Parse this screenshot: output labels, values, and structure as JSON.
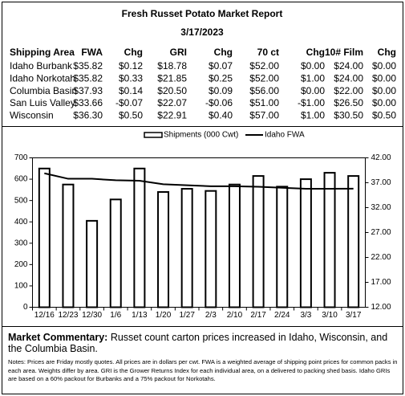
{
  "header": {
    "title": "Fresh Russet Potato Market Report",
    "date": "3/17/2023"
  },
  "table": {
    "columns": [
      "Shipping Area",
      "FWA",
      "Chg",
      "GRI",
      "Chg",
      "70 ct",
      "Chg",
      "10# Film",
      "Chg"
    ],
    "rows": [
      [
        "Idaho Burbank",
        "$35.82",
        "$0.12",
        "$18.78",
        "$0.07",
        "$52.00",
        "$0.00",
        "$24.00",
        "$0.00"
      ],
      [
        "Idaho Norkotah",
        "$35.82",
        "$0.33",
        "$21.85",
        "$0.25",
        "$52.00",
        "$1.00",
        "$24.00",
        "$0.00"
      ],
      [
        "Columbia Basin",
        "$37.93",
        "$0.14",
        "$20.50",
        "$0.09",
        "$56.00",
        "$0.00",
        "$22.00",
        "$0.00"
      ],
      [
        "San Luis Valley",
        "$33.66",
        "-$0.07",
        "$22.07",
        "-$0.06",
        "$51.00",
        "-$1.00",
        "$26.50",
        "$0.00"
      ],
      [
        "Wisconsin",
        "$36.30",
        "$0.50",
        "$22.91",
        "$0.40",
        "$57.00",
        "$1.00",
        "$30.50",
        "$0.50"
      ]
    ]
  },
  "chart_data": {
    "type": "bar",
    "categories": [
      "12/16",
      "12/23",
      "12/30",
      "1/6",
      "1/13",
      "1/20",
      "1/27",
      "2/3",
      "2/10",
      "2/17",
      "2/24",
      "3/3",
      "3/10",
      "3/17"
    ],
    "series": [
      {
        "name": "Shipments (000 Cwt)",
        "type": "bar",
        "color": "#ffffff",
        "values": [
          650,
          575,
          405,
          505,
          650,
          540,
          555,
          545,
          575,
          615,
          565,
          600,
          630,
          615
        ]
      },
      {
        "name": "Idaho FWA",
        "type": "line",
        "axis": "y2",
        "color": "#000000",
        "values": [
          38.9,
          37.8,
          37.8,
          37.5,
          37.4,
          36.7,
          36.5,
          36.3,
          36.3,
          36.2,
          36.0,
          35.8,
          35.8,
          35.82
        ]
      }
    ],
    "ylim": [
      0,
      700
    ],
    "yticks": [
      0,
      100,
      200,
      300,
      400,
      500,
      600,
      700
    ],
    "y2lim": [
      12,
      42
    ],
    "y2ticks": [
      {
        "value": 12,
        "label": "12.00"
      },
      {
        "value": 17,
        "label": "17.00"
      },
      {
        "value": 22,
        "label": "22.00"
      },
      {
        "value": 27,
        "label": "27.00"
      },
      {
        "value": 32,
        "label": "32.00"
      },
      {
        "value": 37,
        "label": "37.00"
      },
      {
        "value": 42,
        "label": "42.00"
      }
    ],
    "grid": false,
    "legend": "top"
  },
  "commentary": {
    "label": "Market Commentary:",
    "text": "Russet count carton prices increased in Idaho, Wisconsin, and the Columbia Basin."
  },
  "notes": "Notes: Prices are Friday mostly quotes. All prices are in dollars per cwt. FWA is a weighted average of shipping point prices for common packs in each area. Weights differ by area. GRI is the Grower Returns Index for each individual area, on a delivered to packing shed basis. Idaho GRIs are based on a 60% packout for Burbanks and a 75% packout for Norkotahs."
}
